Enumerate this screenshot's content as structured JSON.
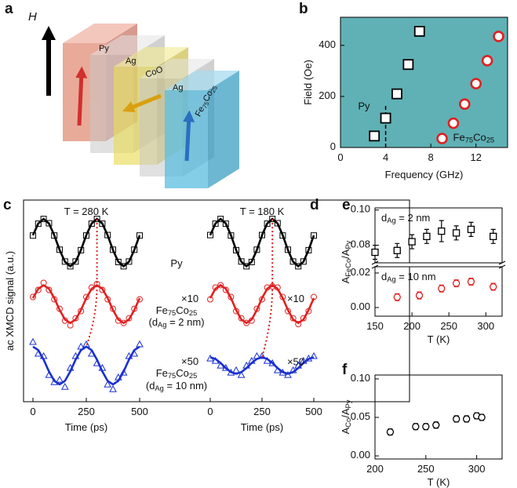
{
  "panel_labels": [
    "a",
    "b",
    "c",
    "d",
    "e",
    "f"
  ],
  "diagram": {
    "field_label": "H",
    "layers": [
      "Py",
      "Ag",
      "CoO",
      "Ag",
      "Fe75Co25"
    ]
  },
  "chart_data": [
    {
      "type": "scatter",
      "xlabel": "Frequency (GHz)",
      "ylabel": "Field (Oe)",
      "xlim": [
        0,
        14.8
      ],
      "xticks": [
        0,
        4,
        8,
        12
      ],
      "ylim": [
        0,
        510
      ],
      "yticks": [
        0,
        200,
        400
      ],
      "background": "#5fb1b5",
      "vline_x": 4,
      "series": [
        {
          "name": "Py",
          "marker": "square",
          "color": "#000000",
          "x": [
            3,
            4,
            5,
            6,
            7
          ],
          "values": [
            45,
            115,
            210,
            325,
            455
          ]
        },
        {
          "name": "Fe75Co25",
          "marker": "circle",
          "color": "#e02020",
          "x": [
            9,
            10,
            11,
            12,
            13,
            14
          ],
          "values": [
            35,
            95,
            170,
            250,
            340,
            435
          ]
        }
      ]
    },
    {
      "type": "wave",
      "ylabel": "ac XMCD signal (a.u.)",
      "xlabel": "Time (ps)",
      "xlim": [
        0,
        500
      ],
      "xticks": [
        0,
        250,
        500
      ],
      "ylim": [
        -6.73,
        1.8
      ],
      "x": [
        0,
        25,
        50,
        75,
        100,
        125,
        150,
        175,
        200,
        225,
        250,
        275,
        300,
        325,
        350,
        375,
        400,
        425,
        450,
        475,
        500
      ],
      "traces": [
        {
          "name": "Py",
          "marker": "square",
          "color": "#000000"
        },
        {
          "name": "Fe75Co25",
          "detail": "(dAg = 2 nm)",
          "scale": "×10",
          "marker": "circle",
          "color": "#e02020"
        },
        {
          "name": "Fe75Co25",
          "detail": "(dAg = 10 nm)",
          "scale": "×50",
          "marker": "triangle",
          "color": "#1a2fd0"
        }
      ],
      "panels": [
        {
          "title": "T = 280 K",
          "data": [
            [
              0.3,
              0.8,
              1,
              0.82,
              0.3,
              -0.3,
              -0.8,
              -1,
              -0.8,
              -0.32,
              0.3,
              0.8,
              1,
              0.8,
              0.32,
              -0.3,
              -0.82,
              -1,
              -0.8,
              -0.3,
              0.3
            ],
            [
              -2.3,
              -2.0,
              -1.7,
              -2.0,
              -2.4,
              -2.8,
              -3.3,
              -3.5,
              -3.2,
              -2.9,
              -2.3,
              -1.9,
              -1.75,
              -2.0,
              -2.4,
              -2.8,
              -3.3,
              -3.4,
              -3.2,
              -2.8,
              -2.4
            ],
            [
              -4.2,
              -4.7,
              -4.8,
              -5.6,
              -5.9,
              -5.8,
              -6.1,
              -5.3,
              -4.8,
              -4.4,
              -4.3,
              -4.7,
              -5.1,
              -5.3,
              -6.0,
              -6.2,
              -5.7,
              -5.5,
              -4.8,
              -4.7,
              -4.3
            ]
          ],
          "fit": [
            [
              0.31,
              0.81,
              1,
              0.81,
              0.31,
              -0.31,
              -0.81,
              -1,
              -0.81,
              -0.31,
              0.31,
              0.81,
              1,
              0.81,
              0.31,
              -0.31,
              -0.81,
              -1,
              -0.81,
              -0.31,
              0.31
            ],
            [
              -2.35,
              -1.95,
              -1.8,
              -1.95,
              -2.35,
              -2.85,
              -3.25,
              -3.4,
              -3.25,
              -2.85,
              -2.35,
              -1.95,
              -1.8,
              -1.95,
              -2.35,
              -2.85,
              -3.25,
              -3.4,
              -3.25,
              -2.85,
              -2.35
            ],
            [
              -4.4,
              -4.55,
              -4.95,
              -5.45,
              -5.85,
              -6.0,
              -5.85,
              -5.45,
              -4.95,
              -4.55,
              -4.4,
              -4.55,
              -4.95,
              -5.45,
              -5.85,
              -6.0,
              -5.85,
              -5.45,
              -4.95,
              -4.55,
              -4.4
            ]
          ]
        },
        {
          "title": "T = 180 K",
          "data": [
            [
              0.32,
              0.8,
              1,
              0.8,
              0.3,
              -0.32,
              -0.8,
              -1,
              -0.82,
              -0.3,
              0.32,
              0.8,
              1,
              0.82,
              0.3,
              -0.3,
              -0.8,
              -1,
              -0.8,
              -0.32,
              0.3
            ],
            [
              -2.4,
              -1.9,
              -1.8,
              -2.0,
              -2.3,
              -2.9,
              -3.2,
              -3.4,
              -3.3,
              -2.8,
              -2.4,
              -1.9,
              -1.85,
              -1.9,
              -2.3,
              -2.9,
              -3.2,
              -3.45,
              -3.2,
              -2.9,
              -2.3
            ],
            [
              -4.9,
              -5.0,
              -5.2,
              -5.3,
              -5.5,
              -5.4,
              -5.6,
              -5.2,
              -5.0,
              -4.8,
              -4.8,
              -5.0,
              -5.1,
              -5.4,
              -5.5,
              -5.6,
              -5.4,
              -5.2,
              -5.0,
              -4.9,
              -4.8
            ]
          ],
          "fit": [
            [
              0.31,
              0.81,
              1,
              0.81,
              0.31,
              -0.31,
              -0.81,
              -1,
              -0.81,
              -0.31,
              0.31,
              0.81,
              1,
              0.81,
              0.31,
              -0.31,
              -0.81,
              -1,
              -0.81,
              -0.31,
              0.31
            ],
            [
              -2.35,
              -1.95,
              -1.8,
              -1.95,
              -2.35,
              -2.85,
              -3.25,
              -3.4,
              -3.25,
              -2.85,
              -2.35,
              -1.95,
              -1.8,
              -1.95,
              -2.35,
              -2.85,
              -3.25,
              -3.4,
              -3.25,
              -2.85,
              -2.35
            ],
            [
              -4.85,
              -4.92,
              -5.09,
              -5.31,
              -5.48,
              -5.55,
              -5.48,
              -5.31,
              -5.09,
              -4.92,
              -4.85,
              -4.92,
              -5.09,
              -5.31,
              -5.48,
              -5.55,
              -5.48,
              -5.31,
              -5.09,
              -4.92,
              -4.85
            ]
          ]
        }
      ]
    },
    {
      "type": "errorbar",
      "xlabel": "T (K)",
      "ylabel": "AFeCo/APy",
      "xlim": [
        150,
        322
      ],
      "xticks": [
        150,
        200,
        250,
        300
      ],
      "ylim": [
        -0.005,
        0.0236
      ],
      "yticks": [
        {
          "value": 0,
          "label": "0.00"
        },
        {
          "value": 0.02,
          "label": "0.02"
        }
      ],
      "ylim_upper": [
        0.07,
        0.1012
      ],
      "yticks_upper": [
        {
          "value": 0.08,
          "label": "0.08"
        },
        {
          "value": 0.1,
          "label": "0.10"
        }
      ],
      "series": [
        {
          "name": "dAg = 2 nm",
          "axis": "upper",
          "marker": "square",
          "color": "#000000",
          "x": [
            150,
            180,
            200,
            220,
            240,
            260,
            280,
            310
          ],
          "values": [
            0.076,
            0.077,
            0.082,
            0.085,
            0.088,
            0.087,
            0.089,
            0.085
          ],
          "errors": [
            0.004,
            0.004,
            0.004,
            0.004,
            0.006,
            0.004,
            0.004,
            0.004
          ]
        },
        {
          "name": "dAg = 10 nm",
          "marker": "circle",
          "color": "#e02020",
          "x": [
            180,
            210,
            240,
            260,
            280,
            310
          ],
          "values": [
            0.006,
            0.007,
            0.011,
            0.014,
            0.015,
            0.012
          ],
          "errors": [
            0.002,
            0.002,
            0.002,
            0.002,
            0.002,
            0.002
          ]
        }
      ]
    },
    {
      "type": "errorbar",
      "xlabel": "T (K)",
      "ylabel": "ACo/APy",
      "xlim": [
        200,
        325
      ],
      "xticks": [
        200,
        250,
        300
      ],
      "ylim": [
        -0.004,
        0.105
      ],
      "yticks": [
        {
          "value": 0,
          "label": "0.00"
        },
        {
          "value": 0.05,
          "label": "0.05"
        },
        {
          "value": 0.1,
          "label": "0.10"
        }
      ],
      "series": [
        {
          "marker": "circle",
          "color": "#000000",
          "x": [
            215,
            240,
            250,
            260,
            280,
            290,
            300,
            305
          ],
          "values": [
            0.031,
            0.038,
            0.038,
            0.04,
            0.048,
            0.048,
            0.052,
            0.05
          ],
          "errors": [
            0.004,
            0.004,
            0.004,
            0.004,
            0.004,
            0.004,
            0.004,
            0.004
          ]
        }
      ]
    }
  ]
}
